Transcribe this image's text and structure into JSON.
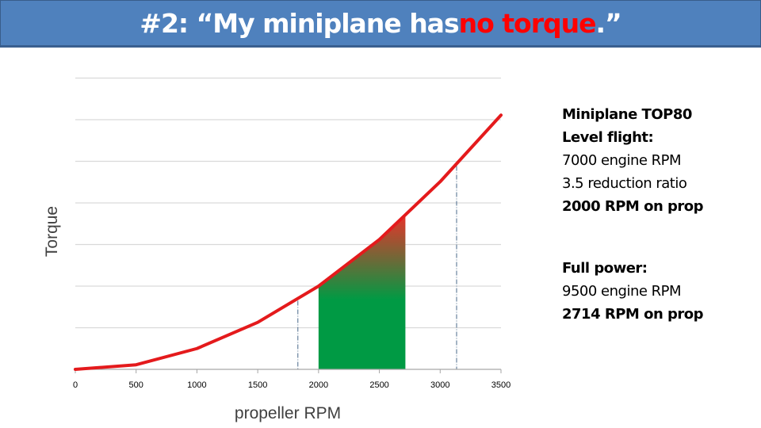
{
  "title": {
    "prefix": "#2: “My miniplane has ",
    "highlight": "no torque",
    "suffix": ".”",
    "highlight_color": "#ff0000",
    "bar_color": "#4f81bd"
  },
  "side_panel": {
    "block1": {
      "line1": "Miniplane TOP80",
      "line2": "Level flight:",
      "line3": "7000 engine RPM",
      "line4": "3.5 reduction ratio",
      "line5": "2000 RPM on prop"
    },
    "block2": {
      "line1": "Full power:",
      "line2": "9500 engine RPM",
      "line3": "2714 RPM on prop"
    }
  },
  "chart_data": {
    "type": "line",
    "title": "",
    "xlabel": "propeller RPM",
    "ylabel": "Torque",
    "x": [
      0,
      500,
      1000,
      1500,
      2000,
      2500,
      3000,
      3500
    ],
    "series": [
      {
        "name": "Torque",
        "color": "#e41a1c",
        "values": [
          0,
          0.11,
          0.5,
          1.13,
          2.0,
          3.12,
          4.51,
          6.11
        ]
      }
    ],
    "xticks": [
      "0",
      "500",
      "1000",
      "1500",
      "2000",
      "2500",
      "3000",
      "3500"
    ],
    "yticks_labeled": false,
    "xlim": [
      0,
      3500
    ],
    "ylim": [
      0,
      7
    ],
    "grid": {
      "horizontal": true,
      "vertical": false,
      "count": 7
    },
    "annotations": {
      "shaded_region": {
        "x_from": 2000,
        "x_to": 2714,
        "fill": "green-to-red gradient",
        "colors": [
          "#009a44",
          "#e8332a"
        ]
      },
      "dashed_lines": [
        1830,
        3135
      ]
    },
    "legend": null
  }
}
